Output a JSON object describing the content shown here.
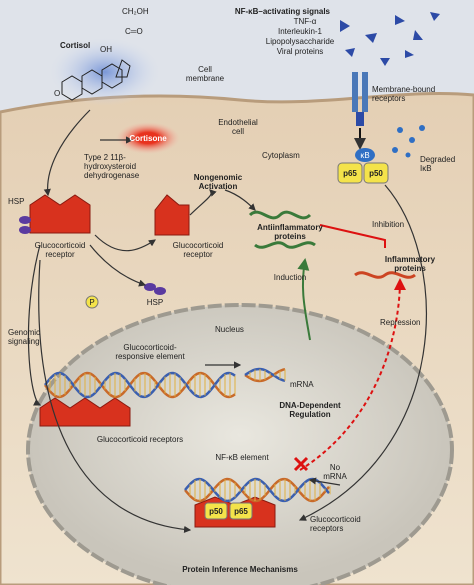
{
  "labels": {
    "cortisol": "Cortisol",
    "cortisol_groups": [
      "CH₂OH",
      "C═O",
      "OH",
      "O"
    ],
    "nfkb_signals": {
      "title": "NF-κB–activating signals",
      "items": [
        "TNF-α",
        "Interleukin-1",
        "Lipopolysaccharide",
        "Viral proteins"
      ]
    },
    "cell_membrane": [
      "Cell",
      "membrane"
    ],
    "membrane_receptors": [
      "Membrane-bound",
      "receptors"
    ],
    "endothelial_cell": [
      "Endothelial",
      "cell"
    ],
    "cortisone": "Cortisone",
    "enzyme": [
      "Type 2 11β-",
      "hydroxysteroid",
      "dehydrogenase"
    ],
    "cytoplasm": "Cytoplasm",
    "kb": "κB",
    "p65_top": "p65",
    "p50_top": "p50",
    "degraded_ikb": [
      "Degraded",
      "IκB"
    ],
    "hsp_left": "HSP",
    "gr_left": [
      "Glucocorticoid",
      "receptor"
    ],
    "nongenomic": [
      "Nongenomic",
      "Activation"
    ],
    "gr_mid": [
      "Glucocorticoid",
      "receptor"
    ],
    "antiinflammatory": [
      "Antiinflammatory",
      "proteins"
    ],
    "inhibition": "Inhibition",
    "inflammatory": [
      "Inflammatory",
      "proteins"
    ],
    "hsp_free": "HSP",
    "phosphate": "P",
    "induction": "Induction",
    "genomic": [
      "Genomic",
      "signaling"
    ],
    "repression": "Repression",
    "nucleus": "Nucleus",
    "gre": [
      "Glucocorticoid-",
      "responsive element"
    ],
    "mrna": "mRNA",
    "dna_regulation": [
      "DNA-Dependent",
      "Regulation"
    ],
    "gr_dna": "Glucocorticoid receptors",
    "nfkb_element": "NF-κB element",
    "no_mrna": [
      "No",
      "mRNA"
    ],
    "p50_bottom": "p50",
    "p65_bottom": "p65",
    "gr_bottom": [
      "Glucocorticoid",
      "receptors"
    ],
    "protein_mech": "Protein Inference Mechanisms"
  }
}
